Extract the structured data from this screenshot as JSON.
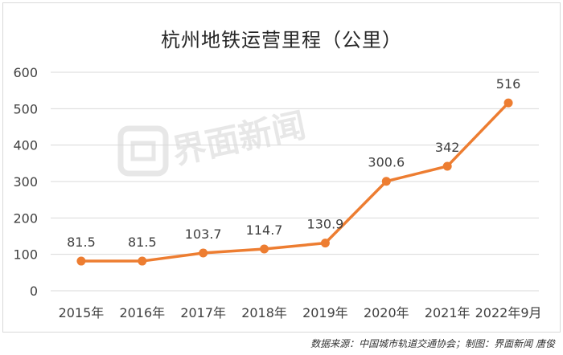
{
  "title": "杭州地铁运营里程（公里）",
  "credit": "数据来源：中国城市轨道交通协会；制图：界面新闻 唐俊",
  "watermark": "界面新闻",
  "colors": {
    "series": "#ed7d31",
    "grid": "#d9d9d9",
    "text": "#404040"
  },
  "chart_data": {
    "type": "line",
    "title": "杭州地铁运营里程（公里）",
    "categories": [
      "2015年",
      "2016年",
      "2017年",
      "2018年",
      "2019年",
      "2020年",
      "2021年",
      "2022年9月"
    ],
    "series": [
      {
        "values": [
          81.5,
          81.5,
          103.7,
          114.7,
          130.9,
          300.6,
          342,
          516
        ]
      }
    ],
    "value_labels": [
      "81.5",
      "81.5",
      "103.7",
      "114.7",
      "130.9",
      "300.6",
      "342",
      "516"
    ],
    "ylim": [
      0,
      600
    ],
    "yticks": [
      0,
      100,
      200,
      300,
      400,
      500,
      600
    ],
    "grid": true,
    "legend": "none"
  }
}
